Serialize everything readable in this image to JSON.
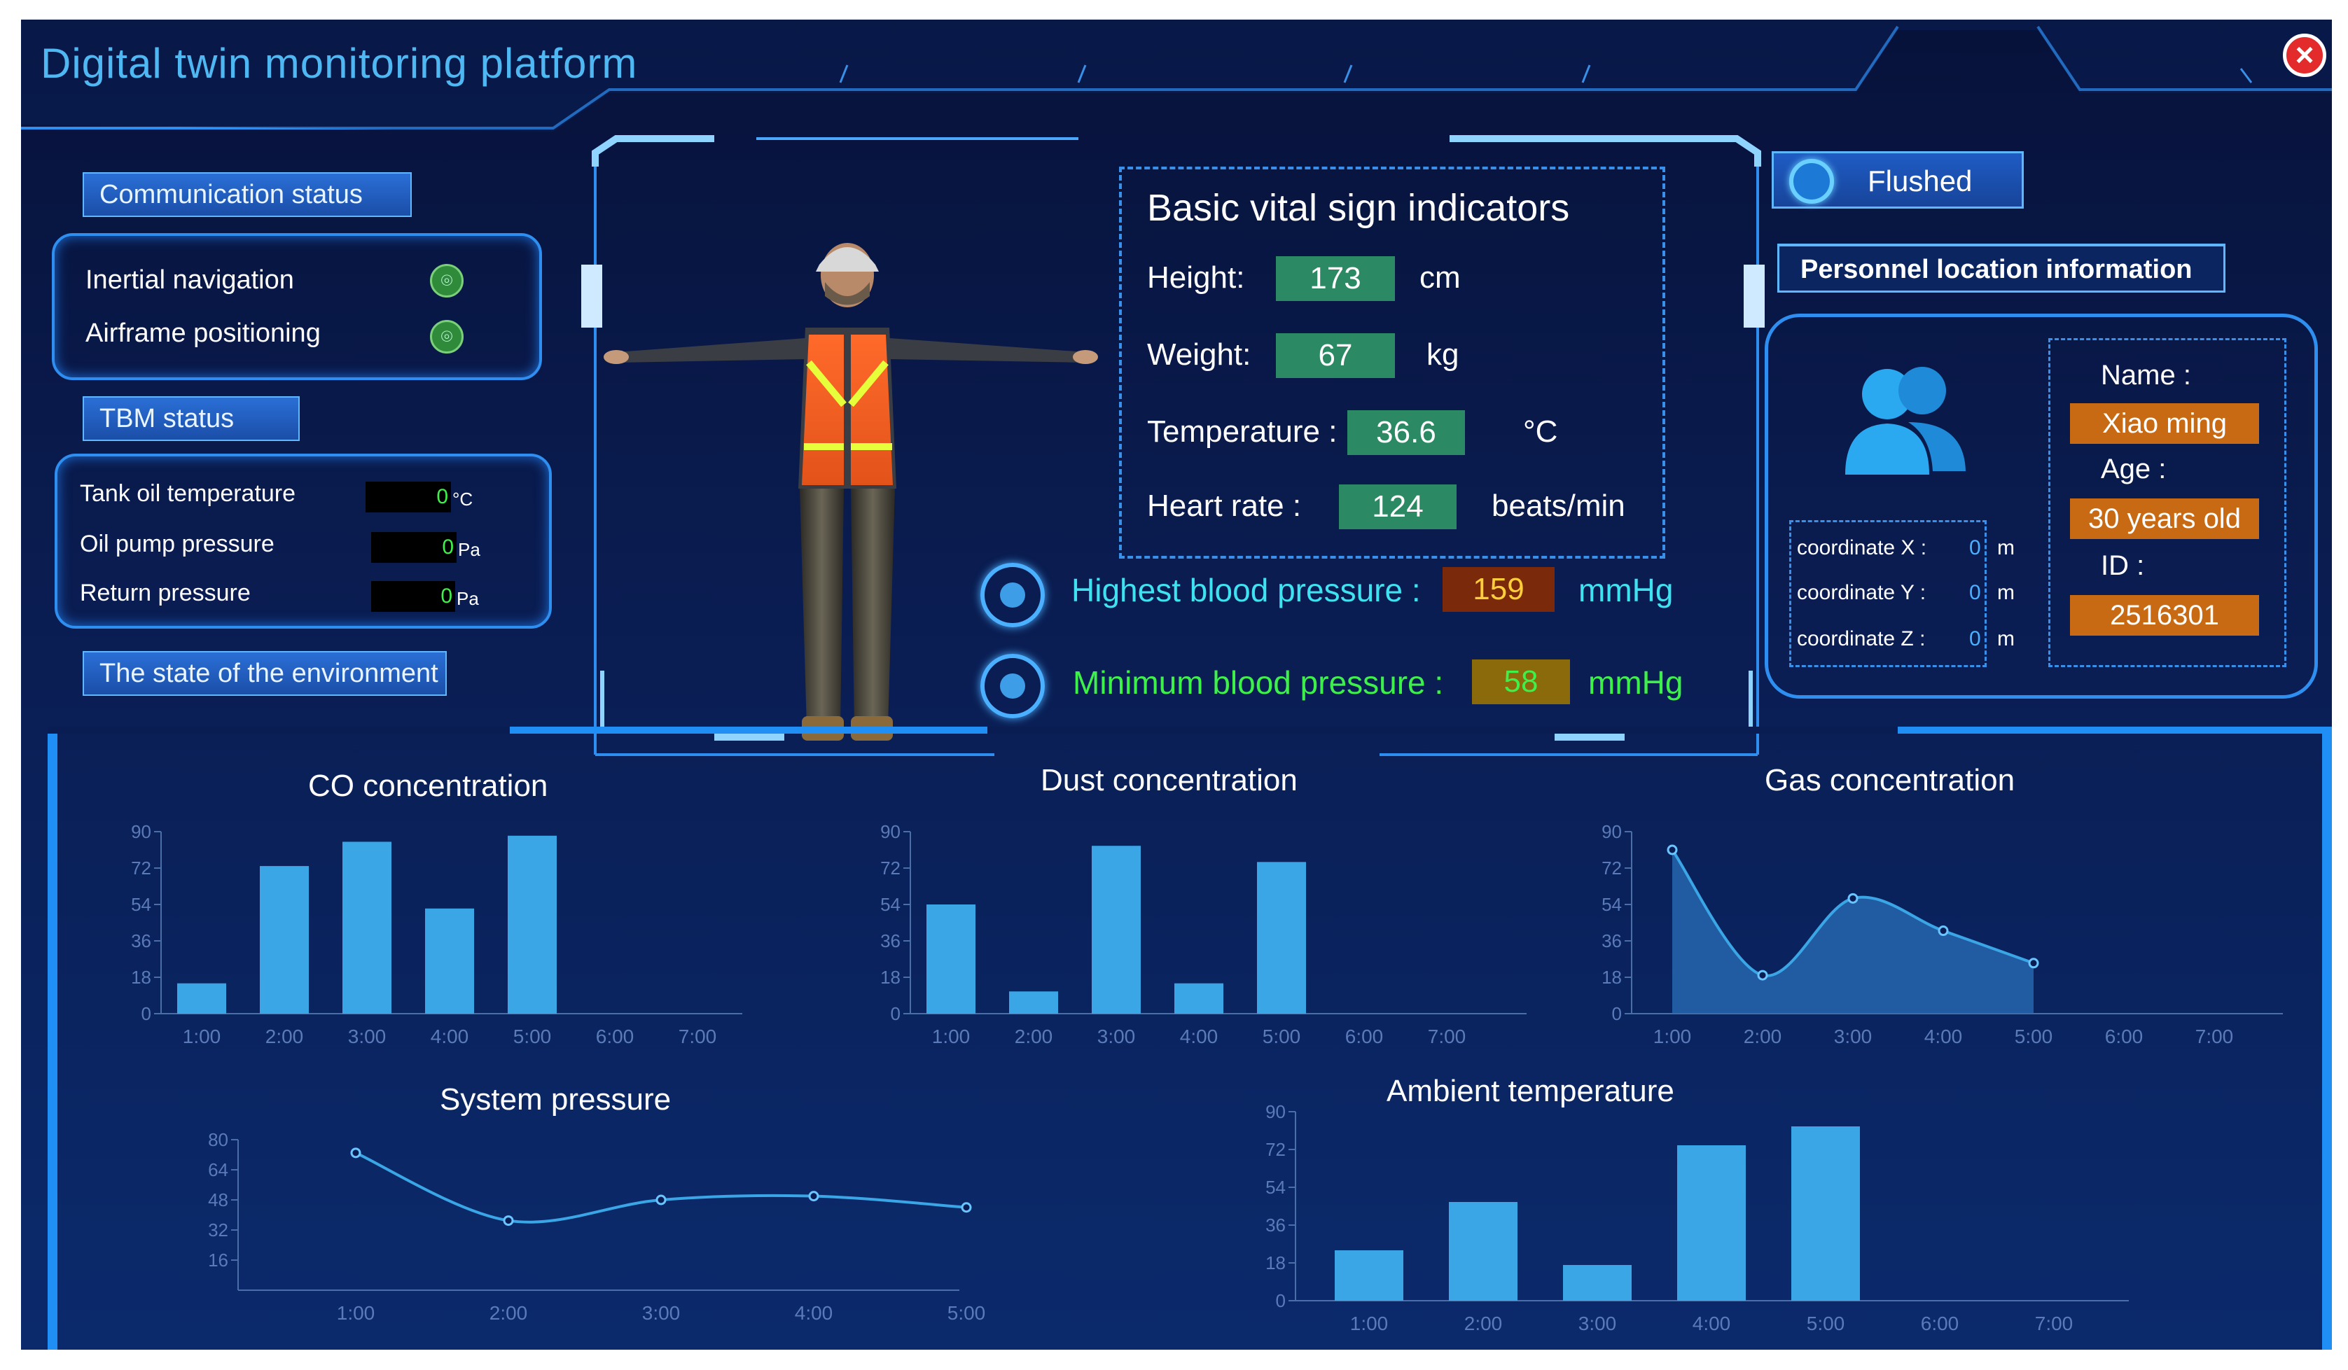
{
  "window": {
    "title": "Digital twin monitoring platform",
    "close_icon": "close-icon"
  },
  "communication": {
    "header": "Communication status",
    "items": [
      {
        "label": "Inertial navigation",
        "icon": "signal-icon"
      },
      {
        "label": "Airframe positioning",
        "icon": "signal-icon"
      }
    ]
  },
  "tbm": {
    "header": "TBM status",
    "items": [
      {
        "label": "Tank oil temperature",
        "value": "0",
        "unit": "°C"
      },
      {
        "label": "Oil pump pressure",
        "value": "0",
        "unit": "Pa"
      },
      {
        "label": "Return pressure",
        "value": "0",
        "unit": "Pa"
      }
    ]
  },
  "environment": {
    "header": "The state of the environment"
  },
  "vitals": {
    "title": "Basic vital sign indicators",
    "height": {
      "label": "Height:",
      "value": "173",
      "unit": "cm"
    },
    "weight": {
      "label": "Weight:",
      "value": "67",
      "unit": "kg"
    },
    "temperature": {
      "label": "Temperature :",
      "value": "36.6",
      "unit": "°C"
    },
    "heart_rate": {
      "label": "Heart rate :",
      "value": "124",
      "unit": "beats/min"
    },
    "bp_high": {
      "label": "Highest blood pressure :",
      "value": "159",
      "unit": "mmHg"
    },
    "bp_low": {
      "label": "Minimum blood pressure :",
      "value": "58",
      "unit": "mmHg"
    }
  },
  "flushed_button": {
    "label": "Flushed",
    "icon": "refresh-icon"
  },
  "location": {
    "header": "Personnel location information",
    "avatar_icon": "users-icon",
    "coords": [
      {
        "label": "coordinate X :",
        "value": "0",
        "unit": "m"
      },
      {
        "label": "coordinate Y :",
        "value": "0",
        "unit": "m"
      },
      {
        "label": "coordinate Z :",
        "value": "0",
        "unit": "m"
      }
    ],
    "name_label": "Name :",
    "name_value": "Xiao ming",
    "age_label": "Age :",
    "age_value": "30 years old",
    "id_label": "ID :",
    "id_value": "2516301"
  },
  "colors": {
    "accent": "#2f8ff0",
    "bar": "#3aa6e6",
    "green_box": "#2b8a63",
    "orange_box": "#c86a14",
    "bp_high_box": "#7a2a0a",
    "bp_low_box": "#8a6a0a"
  },
  "chart_data": [
    {
      "type": "bar",
      "title": "CO concentration",
      "categories": [
        "1:00",
        "2:00",
        "3:00",
        "4:00",
        "5:00",
        "6:00",
        "7:00"
      ],
      "values": [
        15,
        73,
        85,
        52,
        88,
        null,
        null
      ],
      "yticks": [
        0,
        18,
        36,
        54,
        72,
        90
      ],
      "ylim": [
        0,
        90
      ]
    },
    {
      "type": "bar",
      "title": "Dust concentration",
      "categories": [
        "1:00",
        "2:00",
        "3:00",
        "4:00",
        "5:00",
        "6:00",
        "7:00"
      ],
      "values": [
        54,
        11,
        83,
        15,
        75,
        null,
        null
      ],
      "yticks": [
        0,
        18,
        36,
        54,
        72,
        90
      ],
      "ylim": [
        0,
        90
      ]
    },
    {
      "type": "area",
      "title": "Gas concentration",
      "categories": [
        "1:00",
        "2:00",
        "3:00",
        "4:00",
        "5:00",
        "6:00",
        "7:00"
      ],
      "values": [
        81,
        19,
        57,
        41,
        25,
        null,
        null
      ],
      "yticks": [
        0,
        18,
        36,
        54,
        72,
        90
      ],
      "ylim": [
        0,
        90
      ]
    },
    {
      "type": "line",
      "title": "System pressure",
      "categories": [
        "1:00",
        "2:00",
        "3:00",
        "4:00",
        "5:00"
      ],
      "values": [
        73,
        37,
        48,
        50,
        44
      ],
      "yticks": [
        16,
        32,
        48,
        64,
        80
      ],
      "ylim": [
        0,
        80
      ]
    },
    {
      "type": "bar",
      "title": "Ambient temperature",
      "categories": [
        "1:00",
        "2:00",
        "3:00",
        "4:00",
        "5:00",
        "6:00",
        "7:00"
      ],
      "values": [
        24,
        47,
        17,
        74,
        83,
        null,
        null
      ],
      "yticks": [
        0,
        18,
        36,
        54,
        72,
        90
      ],
      "ylim": [
        0,
        90
      ]
    }
  ]
}
